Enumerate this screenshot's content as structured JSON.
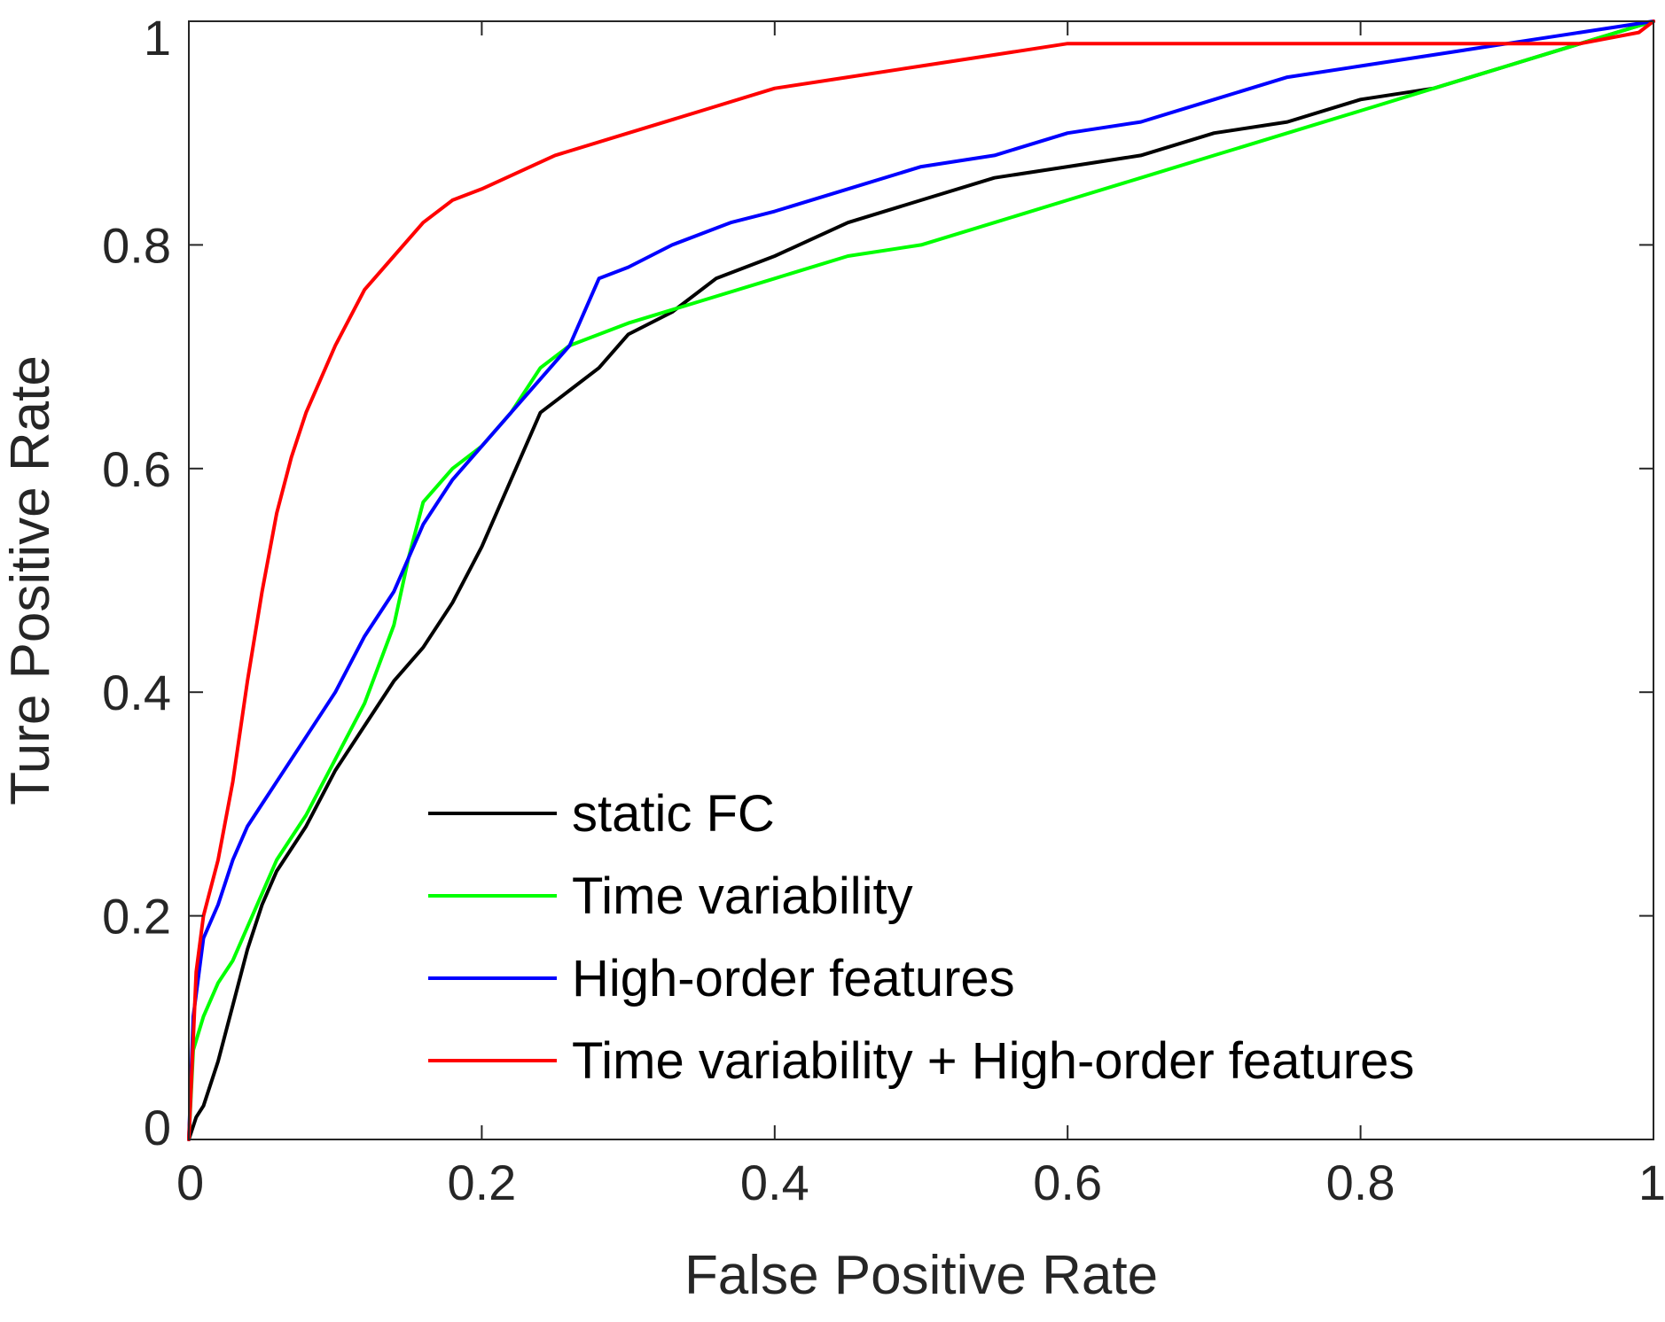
{
  "chart_data": {
    "type": "line",
    "xlabel": "False Positive Rate",
    "ylabel": "Ture Positive Rate",
    "xlim": [
      0,
      1
    ],
    "ylim": [
      0,
      1
    ],
    "xticks": [
      "0",
      "0.2",
      "0.4",
      "0.6",
      "0.8",
      "1"
    ],
    "yticks": [
      "0",
      "0.2",
      "0.4",
      "0.6",
      "0.8",
      "1"
    ],
    "grid": false,
    "legend_position": "bottom-right",
    "series": [
      {
        "name": "static FC",
        "color": "#000000",
        "points": [
          [
            0,
            0
          ],
          [
            0.005,
            0.02
          ],
          [
            0.01,
            0.03
          ],
          [
            0.02,
            0.07
          ],
          [
            0.03,
            0.12
          ],
          [
            0.04,
            0.17
          ],
          [
            0.05,
            0.21
          ],
          [
            0.06,
            0.24
          ],
          [
            0.08,
            0.28
          ],
          [
            0.1,
            0.33
          ],
          [
            0.12,
            0.37
          ],
          [
            0.14,
            0.41
          ],
          [
            0.16,
            0.44
          ],
          [
            0.18,
            0.48
          ],
          [
            0.2,
            0.53
          ],
          [
            0.22,
            0.59
          ],
          [
            0.24,
            0.65
          ],
          [
            0.26,
            0.67
          ],
          [
            0.28,
            0.69
          ],
          [
            0.3,
            0.72
          ],
          [
            0.33,
            0.74
          ],
          [
            0.36,
            0.77
          ],
          [
            0.4,
            0.79
          ],
          [
            0.45,
            0.82
          ],
          [
            0.5,
            0.84
          ],
          [
            0.55,
            0.86
          ],
          [
            0.6,
            0.87
          ],
          [
            0.65,
            0.88
          ],
          [
            0.7,
            0.9
          ],
          [
            0.75,
            0.91
          ],
          [
            0.8,
            0.93
          ],
          [
            0.85,
            0.94
          ],
          [
            0.9,
            0.96
          ],
          [
            0.95,
            0.98
          ],
          [
            1,
            1
          ]
        ]
      },
      {
        "name": "Time variability",
        "color": "#00ff00",
        "points": [
          [
            0,
            0
          ],
          [
            0.003,
            0.08
          ],
          [
            0.01,
            0.11
          ],
          [
            0.02,
            0.14
          ],
          [
            0.03,
            0.16
          ],
          [
            0.04,
            0.19
          ],
          [
            0.05,
            0.22
          ],
          [
            0.06,
            0.25
          ],
          [
            0.08,
            0.29
          ],
          [
            0.1,
            0.34
          ],
          [
            0.12,
            0.39
          ],
          [
            0.14,
            0.46
          ],
          [
            0.15,
            0.52
          ],
          [
            0.16,
            0.57
          ],
          [
            0.18,
            0.6
          ],
          [
            0.2,
            0.62
          ],
          [
            0.22,
            0.65
          ],
          [
            0.24,
            0.69
          ],
          [
            0.26,
            0.71
          ],
          [
            0.3,
            0.73
          ],
          [
            0.35,
            0.75
          ],
          [
            0.4,
            0.77
          ],
          [
            0.45,
            0.79
          ],
          [
            0.5,
            0.8
          ],
          [
            0.55,
            0.82
          ],
          [
            0.6,
            0.84
          ],
          [
            0.65,
            0.86
          ],
          [
            0.7,
            0.88
          ],
          [
            0.75,
            0.9
          ],
          [
            0.8,
            0.92
          ],
          [
            0.85,
            0.94
          ],
          [
            0.9,
            0.96
          ],
          [
            0.95,
            0.98
          ],
          [
            1,
            1
          ]
        ]
      },
      {
        "name": "High-order features",
        "color": "#0000ff",
        "points": [
          [
            0,
            0
          ],
          [
            0.003,
            0.11
          ],
          [
            0.01,
            0.18
          ],
          [
            0.02,
            0.21
          ],
          [
            0.03,
            0.25
          ],
          [
            0.04,
            0.28
          ],
          [
            0.05,
            0.3
          ],
          [
            0.06,
            0.32
          ],
          [
            0.08,
            0.36
          ],
          [
            0.1,
            0.4
          ],
          [
            0.12,
            0.45
          ],
          [
            0.14,
            0.49
          ],
          [
            0.16,
            0.55
          ],
          [
            0.18,
            0.59
          ],
          [
            0.2,
            0.62
          ],
          [
            0.22,
            0.65
          ],
          [
            0.24,
            0.68
          ],
          [
            0.26,
            0.71
          ],
          [
            0.28,
            0.77
          ],
          [
            0.3,
            0.78
          ],
          [
            0.33,
            0.8
          ],
          [
            0.37,
            0.82
          ],
          [
            0.4,
            0.83
          ],
          [
            0.45,
            0.85
          ],
          [
            0.5,
            0.87
          ],
          [
            0.55,
            0.88
          ],
          [
            0.6,
            0.9
          ],
          [
            0.65,
            0.91
          ],
          [
            0.7,
            0.93
          ],
          [
            0.75,
            0.95
          ],
          [
            0.8,
            0.96
          ],
          [
            0.85,
            0.97
          ],
          [
            0.9,
            0.98
          ],
          [
            0.95,
            0.99
          ],
          [
            1,
            1
          ]
        ]
      },
      {
        "name": "Time variability + High-order features",
        "color": "#ff0000",
        "points": [
          [
            0,
            0
          ],
          [
            0.005,
            0.15
          ],
          [
            0.01,
            0.2
          ],
          [
            0.02,
            0.25
          ],
          [
            0.03,
            0.32
          ],
          [
            0.04,
            0.41
          ],
          [
            0.05,
            0.49
          ],
          [
            0.06,
            0.56
          ],
          [
            0.07,
            0.61
          ],
          [
            0.08,
            0.65
          ],
          [
            0.1,
            0.71
          ],
          [
            0.12,
            0.76
          ],
          [
            0.14,
            0.79
          ],
          [
            0.16,
            0.82
          ],
          [
            0.18,
            0.84
          ],
          [
            0.2,
            0.85
          ],
          [
            0.25,
            0.88
          ],
          [
            0.3,
            0.9
          ],
          [
            0.35,
            0.92
          ],
          [
            0.4,
            0.94
          ],
          [
            0.45,
            0.95
          ],
          [
            0.5,
            0.96
          ],
          [
            0.55,
            0.97
          ],
          [
            0.6,
            0.98
          ],
          [
            0.7,
            0.98
          ],
          [
            0.8,
            0.98
          ],
          [
            0.9,
            0.98
          ],
          [
            0.95,
            0.98
          ],
          [
            0.99,
            0.99
          ],
          [
            1,
            1
          ]
        ]
      }
    ]
  }
}
